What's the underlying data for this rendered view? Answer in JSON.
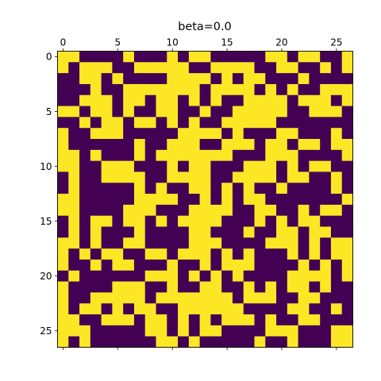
{
  "chart_data": {
    "type": "heatmap",
    "title": "beta=0.0",
    "xlabel": "",
    "ylabel": "",
    "x_ticks": [
      0,
      5,
      10,
      15,
      20,
      25
    ],
    "y_ticks": [
      0,
      5,
      10,
      15,
      20,
      25
    ],
    "xlim": [
      -0.5,
      26.5
    ],
    "ylim": [
      26.5,
      -0.5
    ],
    "grid": false,
    "colormap": "viridis",
    "colors": {
      "low": "#440154",
      "high": "#fde725"
    },
    "values_legend": {
      "0": "purple",
      "1": "yellow"
    },
    "values": [
      "110000100010110000011011001",
      "101110011111001111001100101",
      "001101000011110101100010000",
      "000100111111101111010100111",
      "001110110110101001111011101",
      "110110100110010011111001110",
      "001011011010100111110000000",
      "100111000001111010001100010",
      "100000010011100111011011011",
      "110100010111111100011100001",
      "110011100010110001110101100",
      "010011110011110011110110010",
      "010000010100110101001000010",
      "110000011110010101100000001",
      "110000111000111100110010110",
      "010110110101111000101011000",
      "010100010000110001001101100",
      "110100110000111000011101011",
      "101011001101110101000101011",
      "100101100010010111000010101",
      "010000001110101010000111101",
      "100001110010011001010110100",
      "100111110111111101110011000",
      "101101011001111110000110010",
      "110011101101010111010011000",
      "111000001101011000011100011",
      "101000000110100000100100011"
    ]
  }
}
